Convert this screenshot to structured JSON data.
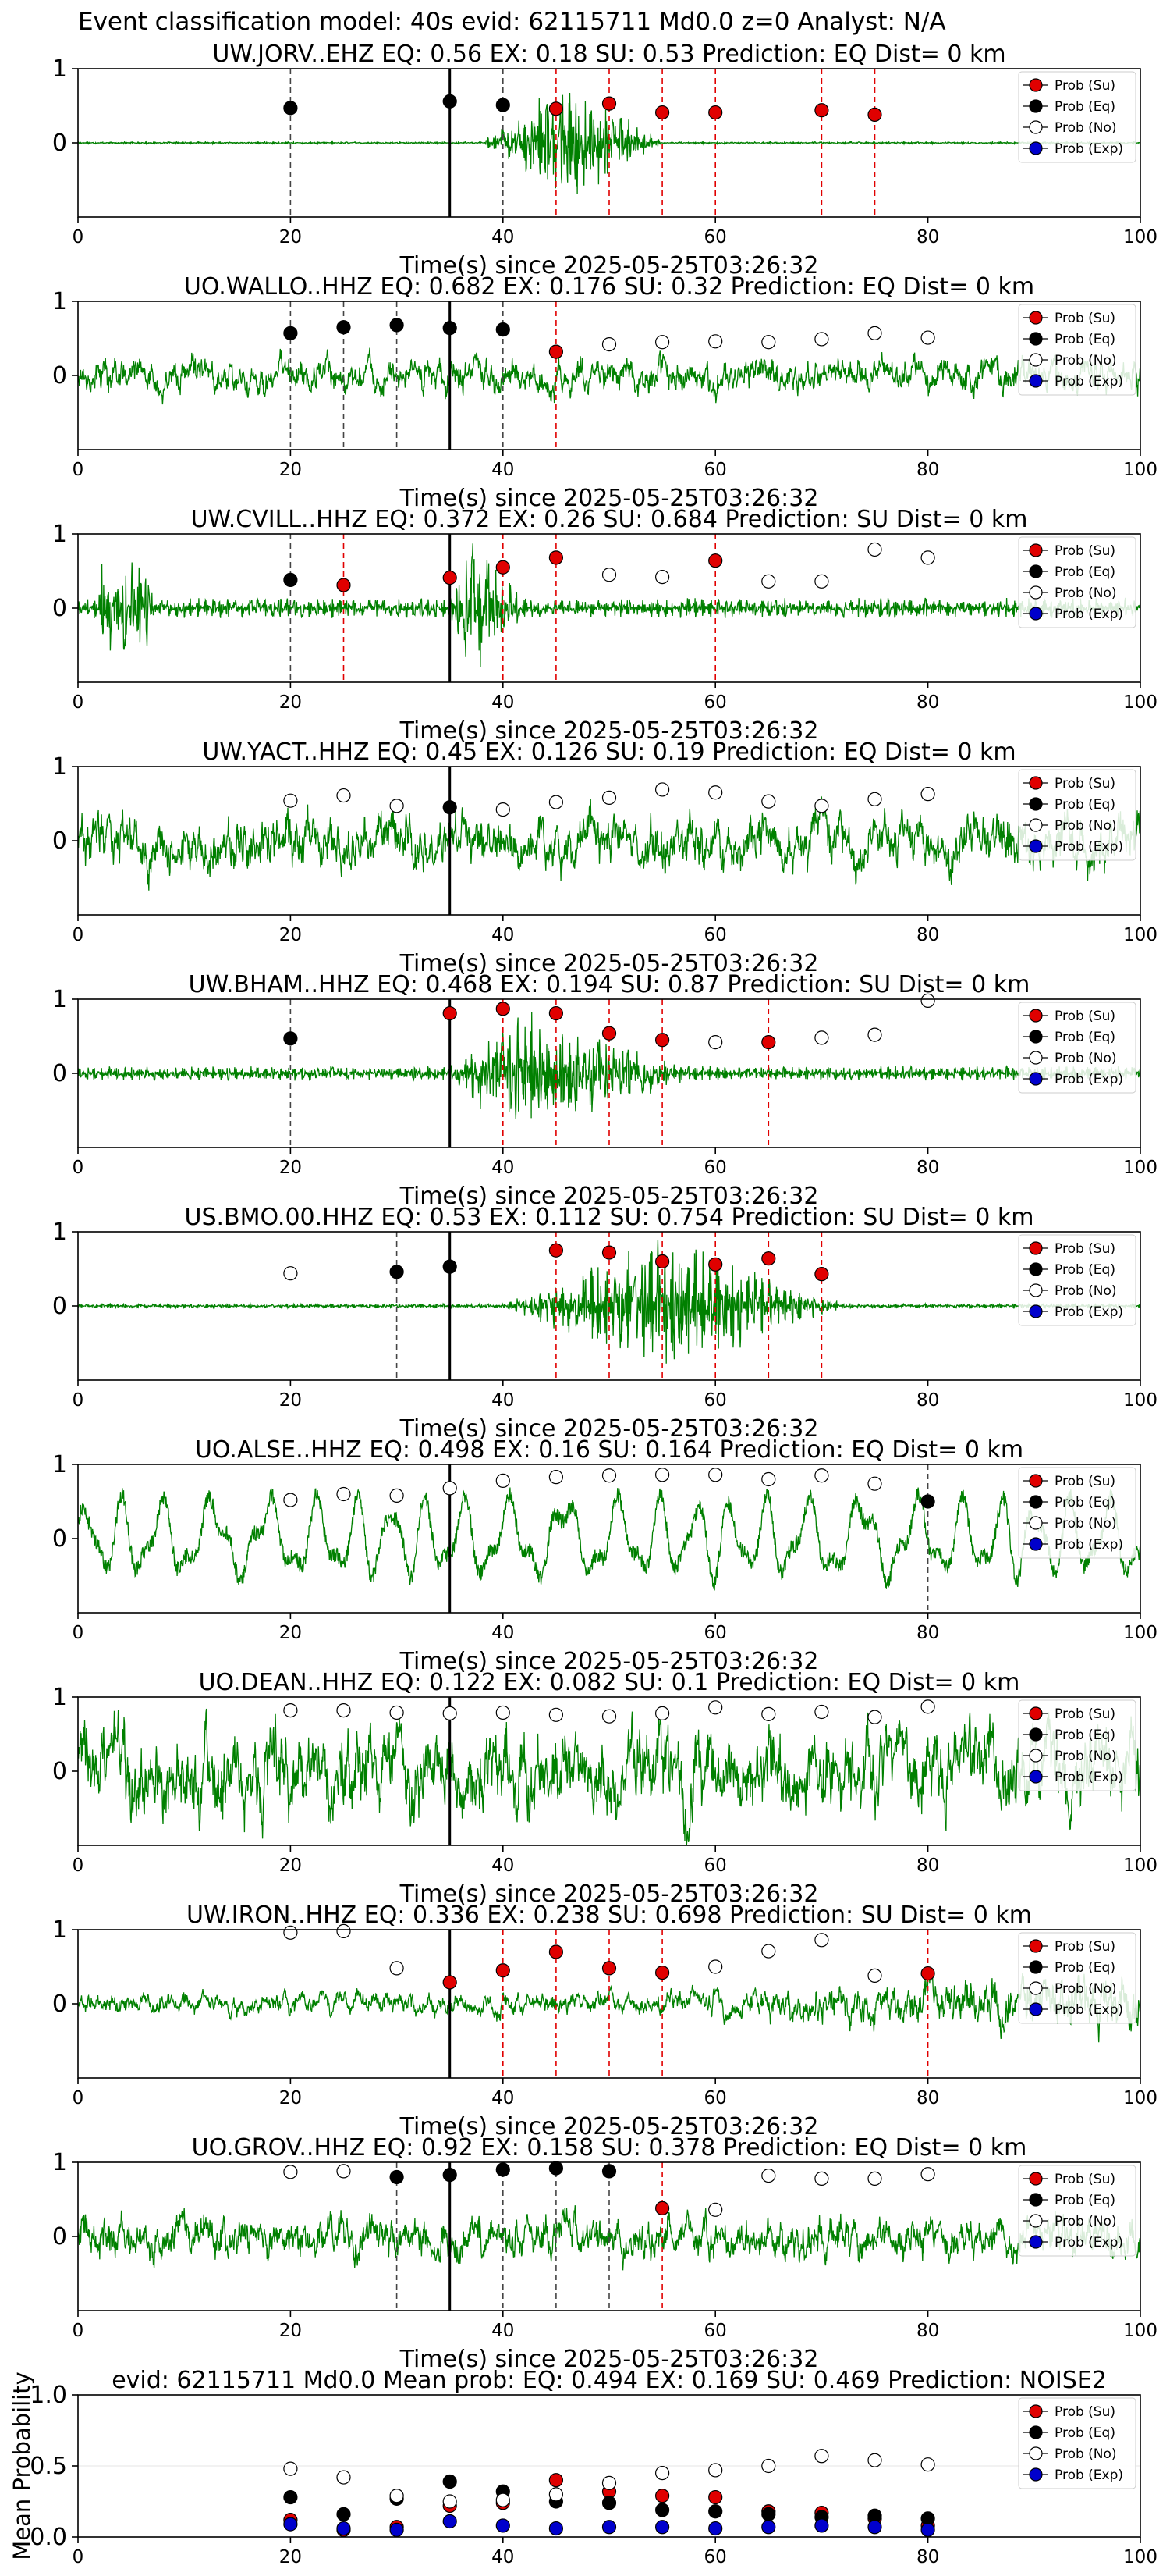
{
  "suptitle": "Event classification model: 40s evid: 62115711 Md0.0 z=0 Analyst: N/A",
  "colors": {
    "su": "#e00000",
    "eq": "#000000",
    "no": "#ffffff",
    "exp": "#0000cc",
    "trace": "#008000"
  },
  "legend": [
    "Prob (Su)",
    "Prob (Eq)",
    "Prob (No)",
    "Prob (Exp)"
  ],
  "chart_data": [
    {
      "type": "line",
      "title": "UW.JORV..EHZ   EQ: 0.56  EX: 0.18  SU: 0.53   Prediction: EQ    Dist= 0 km",
      "xlabel": "Time(s) since 2025-05-25T03:26:32",
      "xlim": [
        0,
        100
      ],
      "ylim": [
        -1,
        1
      ],
      "x_ticks": [
        "0",
        "20",
        "40",
        "60",
        "80",
        "100"
      ],
      "y_ticks": [
        "0",
        "1"
      ],
      "legend_position": "top-right",
      "waveform": {
        "style": "burst",
        "start": 38,
        "peak": 46,
        "end": 55,
        "background": 0.015,
        "amplitude": 0.9
      },
      "pick_time": 35,
      "markers": [
        {
          "x": 20,
          "y": 0.47,
          "cls": "eq"
        },
        {
          "x": 35,
          "y": 0.56,
          "cls": "eq"
        },
        {
          "x": 40,
          "y": 0.51,
          "cls": "eq"
        },
        {
          "x": 45,
          "y": 0.46,
          "cls": "su"
        },
        {
          "x": 50,
          "y": 0.53,
          "cls": "su"
        },
        {
          "x": 55,
          "y": 0.41,
          "cls": "su"
        },
        {
          "x": 60,
          "y": 0.41,
          "cls": "su"
        },
        {
          "x": 70,
          "y": 0.44,
          "cls": "su"
        },
        {
          "x": 75,
          "y": 0.38,
          "cls": "su"
        }
      ]
    },
    {
      "type": "line",
      "title": "UO.WALLO..HHZ   EQ: 0.682  EX: 0.176  SU: 0.32   Prediction: EQ    Dist= 0 km",
      "xlabel": "Time(s) since 2025-05-25T03:26:32",
      "xlim": [
        0,
        100
      ],
      "ylim": [
        -1,
        1
      ],
      "x_ticks": [
        "0",
        "20",
        "40",
        "60",
        "80",
        "100"
      ],
      "y_ticks": [
        "0",
        "1"
      ],
      "legend_position": "top-right",
      "waveform": {
        "style": "noise",
        "background": 0.3,
        "amplitude": 0.3
      },
      "pick_time": 35,
      "markers": [
        {
          "x": 20,
          "y": 0.57,
          "cls": "eq"
        },
        {
          "x": 25,
          "y": 0.65,
          "cls": "eq"
        },
        {
          "x": 30,
          "y": 0.68,
          "cls": "eq"
        },
        {
          "x": 35,
          "y": 0.64,
          "cls": "eq"
        },
        {
          "x": 40,
          "y": 0.62,
          "cls": "eq"
        },
        {
          "x": 45,
          "y": 0.32,
          "cls": "su"
        },
        {
          "x": 50,
          "y": 0.42,
          "cls": "no"
        },
        {
          "x": 55,
          "y": 0.45,
          "cls": "no"
        },
        {
          "x": 60,
          "y": 0.46,
          "cls": "no"
        },
        {
          "x": 65,
          "y": 0.45,
          "cls": "no"
        },
        {
          "x": 70,
          "y": 0.49,
          "cls": "no"
        },
        {
          "x": 75,
          "y": 0.57,
          "cls": "no"
        },
        {
          "x": 80,
          "y": 0.51,
          "cls": "no"
        }
      ]
    },
    {
      "type": "line",
      "title": "UW.CVILL..HHZ   EQ: 0.372  EX: 0.26  SU: 0.684   Prediction: SU    Dist= 0 km",
      "xlabel": "Time(s) since 2025-05-25T03:26:32",
      "xlim": [
        0,
        100
      ],
      "ylim": [
        -1,
        1
      ],
      "x_ticks": [
        "0",
        "20",
        "40",
        "60",
        "80",
        "100"
      ],
      "y_ticks": [
        "0",
        "1"
      ],
      "legend_position": "top-right",
      "waveform": {
        "style": "burst",
        "start": 35,
        "peak": 37,
        "end": 42,
        "background": 0.14,
        "amplitude": 0.85,
        "precursor": [
          2,
          7
        ]
      },
      "pick_time": 35,
      "markers": [
        {
          "x": 20,
          "y": 0.38,
          "cls": "eq"
        },
        {
          "x": 25,
          "y": 0.31,
          "cls": "su"
        },
        {
          "x": 35,
          "y": 0.41,
          "cls": "su"
        },
        {
          "x": 40,
          "y": 0.55,
          "cls": "su"
        },
        {
          "x": 45,
          "y": 0.68,
          "cls": "su"
        },
        {
          "x": 50,
          "y": 0.45,
          "cls": "no"
        },
        {
          "x": 55,
          "y": 0.42,
          "cls": "no"
        },
        {
          "x": 60,
          "y": 0.64,
          "cls": "su"
        },
        {
          "x": 65,
          "y": 0.36,
          "cls": "no"
        },
        {
          "x": 70,
          "y": 0.36,
          "cls": "no"
        },
        {
          "x": 75,
          "y": 0.79,
          "cls": "no"
        },
        {
          "x": 80,
          "y": 0.68,
          "cls": "no"
        }
      ]
    },
    {
      "type": "line",
      "title": "UW.YACT..HHZ   EQ: 0.45  EX: 0.126  SU: 0.19   Prediction: EQ    Dist= 0 km",
      "xlabel": "Time(s) since 2025-05-25T03:26:32",
      "xlim": [
        0,
        100
      ],
      "ylim": [
        -1,
        1
      ],
      "x_ticks": [
        "0",
        "20",
        "40",
        "60",
        "80",
        "100"
      ],
      "y_ticks": [
        "0",
        "1"
      ],
      "legend_position": "top-right",
      "waveform": {
        "style": "noise",
        "background": 0.45,
        "amplitude": 0.45
      },
      "pick_time": 35,
      "markers": [
        {
          "x": 20,
          "y": 0.54,
          "cls": "no"
        },
        {
          "x": 25,
          "y": 0.61,
          "cls": "no"
        },
        {
          "x": 30,
          "y": 0.47,
          "cls": "no"
        },
        {
          "x": 35,
          "y": 0.45,
          "cls": "eq"
        },
        {
          "x": 40,
          "y": 0.42,
          "cls": "no"
        },
        {
          "x": 45,
          "y": 0.52,
          "cls": "no"
        },
        {
          "x": 50,
          "y": 0.58,
          "cls": "no"
        },
        {
          "x": 55,
          "y": 0.69,
          "cls": "no"
        },
        {
          "x": 60,
          "y": 0.65,
          "cls": "no"
        },
        {
          "x": 65,
          "y": 0.53,
          "cls": "no"
        },
        {
          "x": 70,
          "y": 0.47,
          "cls": "no"
        },
        {
          "x": 75,
          "y": 0.56,
          "cls": "no"
        },
        {
          "x": 80,
          "y": 0.63,
          "cls": "no"
        }
      ]
    },
    {
      "type": "line",
      "title": "UW.BHAM..HHZ   EQ: 0.468  EX: 0.194  SU: 0.87   Prediction: SU    Dist= 0 km",
      "xlabel": "Time(s) since 2025-05-25T03:26:32",
      "xlim": [
        0,
        100
      ],
      "ylim": [
        -1,
        1
      ],
      "x_ticks": [
        "0",
        "20",
        "40",
        "60",
        "80",
        "100"
      ],
      "y_ticks": [
        "0",
        "1"
      ],
      "legend_position": "top-right",
      "waveform": {
        "style": "burst",
        "start": 35,
        "peak": 41,
        "end": 58,
        "background": 0.1,
        "amplitude": 0.85
      },
      "pick_time": 35,
      "markers": [
        {
          "x": 20,
          "y": 0.47,
          "cls": "eq"
        },
        {
          "x": 35,
          "y": 0.81,
          "cls": "su"
        },
        {
          "x": 40,
          "y": 0.87,
          "cls": "su"
        },
        {
          "x": 45,
          "y": 0.81,
          "cls": "su"
        },
        {
          "x": 50,
          "y": 0.54,
          "cls": "su"
        },
        {
          "x": 55,
          "y": 0.45,
          "cls": "su"
        },
        {
          "x": 60,
          "y": 0.42,
          "cls": "no"
        },
        {
          "x": 65,
          "y": 0.42,
          "cls": "su"
        },
        {
          "x": 70,
          "y": 0.48,
          "cls": "no"
        },
        {
          "x": 75,
          "y": 0.52,
          "cls": "no"
        },
        {
          "x": 80,
          "y": 0.98,
          "cls": "no"
        }
      ]
    },
    {
      "type": "line",
      "title": "US.BMO.00.HHZ   EQ: 0.53  EX: 0.112  SU: 0.754   Prediction: SU    Dist= 0 km",
      "xlabel": "Time(s) since 2025-05-25T03:26:32",
      "xlim": [
        0,
        100
      ],
      "ylim": [
        -1,
        1
      ],
      "x_ticks": [
        "0",
        "20",
        "40",
        "60",
        "80",
        "100"
      ],
      "y_ticks": [
        "0",
        "1"
      ],
      "legend_position": "top-right",
      "waveform": {
        "style": "burst",
        "start": 40,
        "peak": 55,
        "end": 72,
        "background": 0.03,
        "amplitude": 0.95
      },
      "pick_time": 35,
      "markers": [
        {
          "x": 20,
          "y": 0.44,
          "cls": "no"
        },
        {
          "x": 30,
          "y": 0.46,
          "cls": "eq"
        },
        {
          "x": 35,
          "y": 0.53,
          "cls": "eq"
        },
        {
          "x": 45,
          "y": 0.75,
          "cls": "su"
        },
        {
          "x": 50,
          "y": 0.72,
          "cls": "su"
        },
        {
          "x": 55,
          "y": 0.6,
          "cls": "su"
        },
        {
          "x": 60,
          "y": 0.56,
          "cls": "su"
        },
        {
          "x": 65,
          "y": 0.64,
          "cls": "su"
        },
        {
          "x": 70,
          "y": 0.43,
          "cls": "su"
        }
      ]
    },
    {
      "type": "line",
      "title": "UO.ALSE..HHZ   EQ: 0.498  EX: 0.16  SU: 0.164   Prediction: EQ    Dist= 0 km",
      "xlabel": "Time(s) since 2025-05-25T03:26:32",
      "xlim": [
        0,
        100
      ],
      "ylim": [
        -1,
        1
      ],
      "x_ticks": [
        "0",
        "20",
        "40",
        "60",
        "80",
        "100"
      ],
      "y_ticks": [
        "0",
        "1"
      ],
      "legend_position": "top-right",
      "waveform": {
        "style": "swell",
        "background": 0.6,
        "amplitude": 0.6
      },
      "pick_time": 35,
      "markers": [
        {
          "x": 20,
          "y": 0.52,
          "cls": "no"
        },
        {
          "x": 25,
          "y": 0.6,
          "cls": "no"
        },
        {
          "x": 30,
          "y": 0.58,
          "cls": "no"
        },
        {
          "x": 35,
          "y": 0.68,
          "cls": "no"
        },
        {
          "x": 40,
          "y": 0.78,
          "cls": "no"
        },
        {
          "x": 45,
          "y": 0.83,
          "cls": "no"
        },
        {
          "x": 50,
          "y": 0.85,
          "cls": "no"
        },
        {
          "x": 55,
          "y": 0.86,
          "cls": "no"
        },
        {
          "x": 60,
          "y": 0.86,
          "cls": "no"
        },
        {
          "x": 65,
          "y": 0.8,
          "cls": "no"
        },
        {
          "x": 70,
          "y": 0.85,
          "cls": "no"
        },
        {
          "x": 75,
          "y": 0.74,
          "cls": "no"
        },
        {
          "x": 80,
          "y": 0.5,
          "cls": "eq"
        }
      ]
    },
    {
      "type": "line",
      "title": "UO.DEAN..HHZ   EQ: 0.122  EX: 0.082  SU: 0.1   Prediction: EQ    Dist= 0 km",
      "xlabel": "Time(s) since 2025-05-25T03:26:32",
      "xlim": [
        0,
        100
      ],
      "ylim": [
        -1,
        1
      ],
      "x_ticks": [
        "0",
        "20",
        "40",
        "60",
        "80",
        "100"
      ],
      "y_ticks": [
        "0",
        "1"
      ],
      "legend_position": "top-right",
      "waveform": {
        "style": "noise",
        "background": 0.7,
        "amplitude": 0.7
      },
      "pick_time": 35,
      "markers": [
        {
          "x": 20,
          "y": 0.82,
          "cls": "no"
        },
        {
          "x": 25,
          "y": 0.82,
          "cls": "no"
        },
        {
          "x": 30,
          "y": 0.79,
          "cls": "no"
        },
        {
          "x": 35,
          "y": 0.78,
          "cls": "no"
        },
        {
          "x": 40,
          "y": 0.79,
          "cls": "no"
        },
        {
          "x": 45,
          "y": 0.76,
          "cls": "no"
        },
        {
          "x": 50,
          "y": 0.74,
          "cls": "no"
        },
        {
          "x": 55,
          "y": 0.78,
          "cls": "no"
        },
        {
          "x": 60,
          "y": 0.86,
          "cls": "no"
        },
        {
          "x": 65,
          "y": 0.77,
          "cls": "no"
        },
        {
          "x": 70,
          "y": 0.8,
          "cls": "no"
        },
        {
          "x": 75,
          "y": 0.73,
          "cls": "no"
        },
        {
          "x": 80,
          "y": 0.87,
          "cls": "no"
        }
      ]
    },
    {
      "type": "line",
      "title": "UW.IRON..HHZ   EQ: 0.336  EX: 0.238  SU: 0.698   Prediction: SU    Dist= 0 km",
      "xlabel": "Time(s) since 2025-05-25T03:26:32",
      "xlim": [
        0,
        100
      ],
      "ylim": [
        -1,
        1
      ],
      "x_ticks": [
        "0",
        "20",
        "40",
        "60",
        "80",
        "100"
      ],
      "y_ticks": [
        "0",
        "1"
      ],
      "legend_position": "top-right",
      "waveform": {
        "style": "ramp",
        "background": 0.18,
        "amplitude": 0.55
      },
      "pick_time": 35,
      "markers": [
        {
          "x": 20,
          "y": 0.96,
          "cls": "no"
        },
        {
          "x": 25,
          "y": 0.98,
          "cls": "no"
        },
        {
          "x": 30,
          "y": 0.48,
          "cls": "no"
        },
        {
          "x": 35,
          "y": 0.29,
          "cls": "su"
        },
        {
          "x": 40,
          "y": 0.45,
          "cls": "su"
        },
        {
          "x": 45,
          "y": 0.7,
          "cls": "su"
        },
        {
          "x": 50,
          "y": 0.48,
          "cls": "su"
        },
        {
          "x": 55,
          "y": 0.42,
          "cls": "su"
        },
        {
          "x": 60,
          "y": 0.5,
          "cls": "no"
        },
        {
          "x": 65,
          "y": 0.71,
          "cls": "no"
        },
        {
          "x": 70,
          "y": 0.86,
          "cls": "no"
        },
        {
          "x": 75,
          "y": 0.38,
          "cls": "no"
        },
        {
          "x": 80,
          "y": 0.41,
          "cls": "su"
        }
      ]
    },
    {
      "type": "line",
      "title": "UO.GROV..HHZ   EQ: 0.92  EX: 0.158  SU: 0.378   Prediction: EQ    Dist= 0 km",
      "xlabel": "Time(s) since 2025-05-25T03:26:32",
      "xlim": [
        0,
        100
      ],
      "ylim": [
        -1,
        1
      ],
      "x_ticks": [
        "0",
        "20",
        "40",
        "60",
        "80",
        "100"
      ],
      "y_ticks": [
        "0",
        "1"
      ],
      "legend_position": "top-right",
      "waveform": {
        "style": "noise",
        "background": 0.35,
        "amplitude": 0.35
      },
      "pick_time": 35,
      "markers": [
        {
          "x": 20,
          "y": 0.87,
          "cls": "no"
        },
        {
          "x": 25,
          "y": 0.88,
          "cls": "no"
        },
        {
          "x": 30,
          "y": 0.8,
          "cls": "eq"
        },
        {
          "x": 35,
          "y": 0.83,
          "cls": "eq"
        },
        {
          "x": 40,
          "y": 0.9,
          "cls": "eq"
        },
        {
          "x": 45,
          "y": 0.92,
          "cls": "eq"
        },
        {
          "x": 50,
          "y": 0.88,
          "cls": "eq"
        },
        {
          "x": 55,
          "y": 0.38,
          "cls": "su"
        },
        {
          "x": 60,
          "y": 0.36,
          "cls": "no"
        },
        {
          "x": 65,
          "y": 0.82,
          "cls": "no"
        },
        {
          "x": 70,
          "y": 0.78,
          "cls": "no"
        },
        {
          "x": 75,
          "y": 0.78,
          "cls": "no"
        },
        {
          "x": 80,
          "y": 0.84,
          "cls": "no"
        }
      ]
    },
    {
      "type": "scatter",
      "title": "evid: 62115711  Md0.0   Mean prob:   EQ: 0.494  EX: 0.169  SU: 0.469   Prediction: NOISE2",
      "xlabel": "",
      "ylabel": "Mean Probability",
      "xlim": [
        0,
        100
      ],
      "ylim": [
        0,
        1
      ],
      "x_ticks": [
        "0",
        "20",
        "40",
        "60",
        "80",
        "100"
      ],
      "y_ticks": [
        "0.0",
        "0.5",
        "1.0"
      ],
      "legend_position": "top-right",
      "x": [
        20,
        25,
        30,
        35,
        40,
        45,
        50,
        55,
        60,
        65,
        70,
        75,
        80
      ],
      "series": [
        {
          "name": "Prob (Su)",
          "cls": "su",
          "values": [
            0.12,
            0.05,
            0.07,
            0.22,
            0.24,
            0.4,
            0.32,
            0.29,
            0.28,
            0.18,
            0.17,
            0.13,
            0.08
          ]
        },
        {
          "name": "Prob (Eq)",
          "cls": "eq",
          "values": [
            0.28,
            0.16,
            0.27,
            0.39,
            0.32,
            0.25,
            0.24,
            0.19,
            0.18,
            0.16,
            0.14,
            0.15,
            0.13
          ]
        },
        {
          "name": "Prob (No)",
          "cls": "no",
          "values": [
            0.48,
            0.42,
            0.29,
            0.25,
            0.26,
            0.3,
            0.38,
            0.45,
            0.47,
            0.5,
            0.57,
            0.54,
            0.51
          ]
        },
        {
          "name": "Prob (Exp)",
          "cls": "exp",
          "values": [
            0.09,
            0.06,
            0.05,
            0.11,
            0.08,
            0.06,
            0.07,
            0.07,
            0.06,
            0.07,
            0.08,
            0.07,
            0.05
          ]
        }
      ]
    }
  ]
}
